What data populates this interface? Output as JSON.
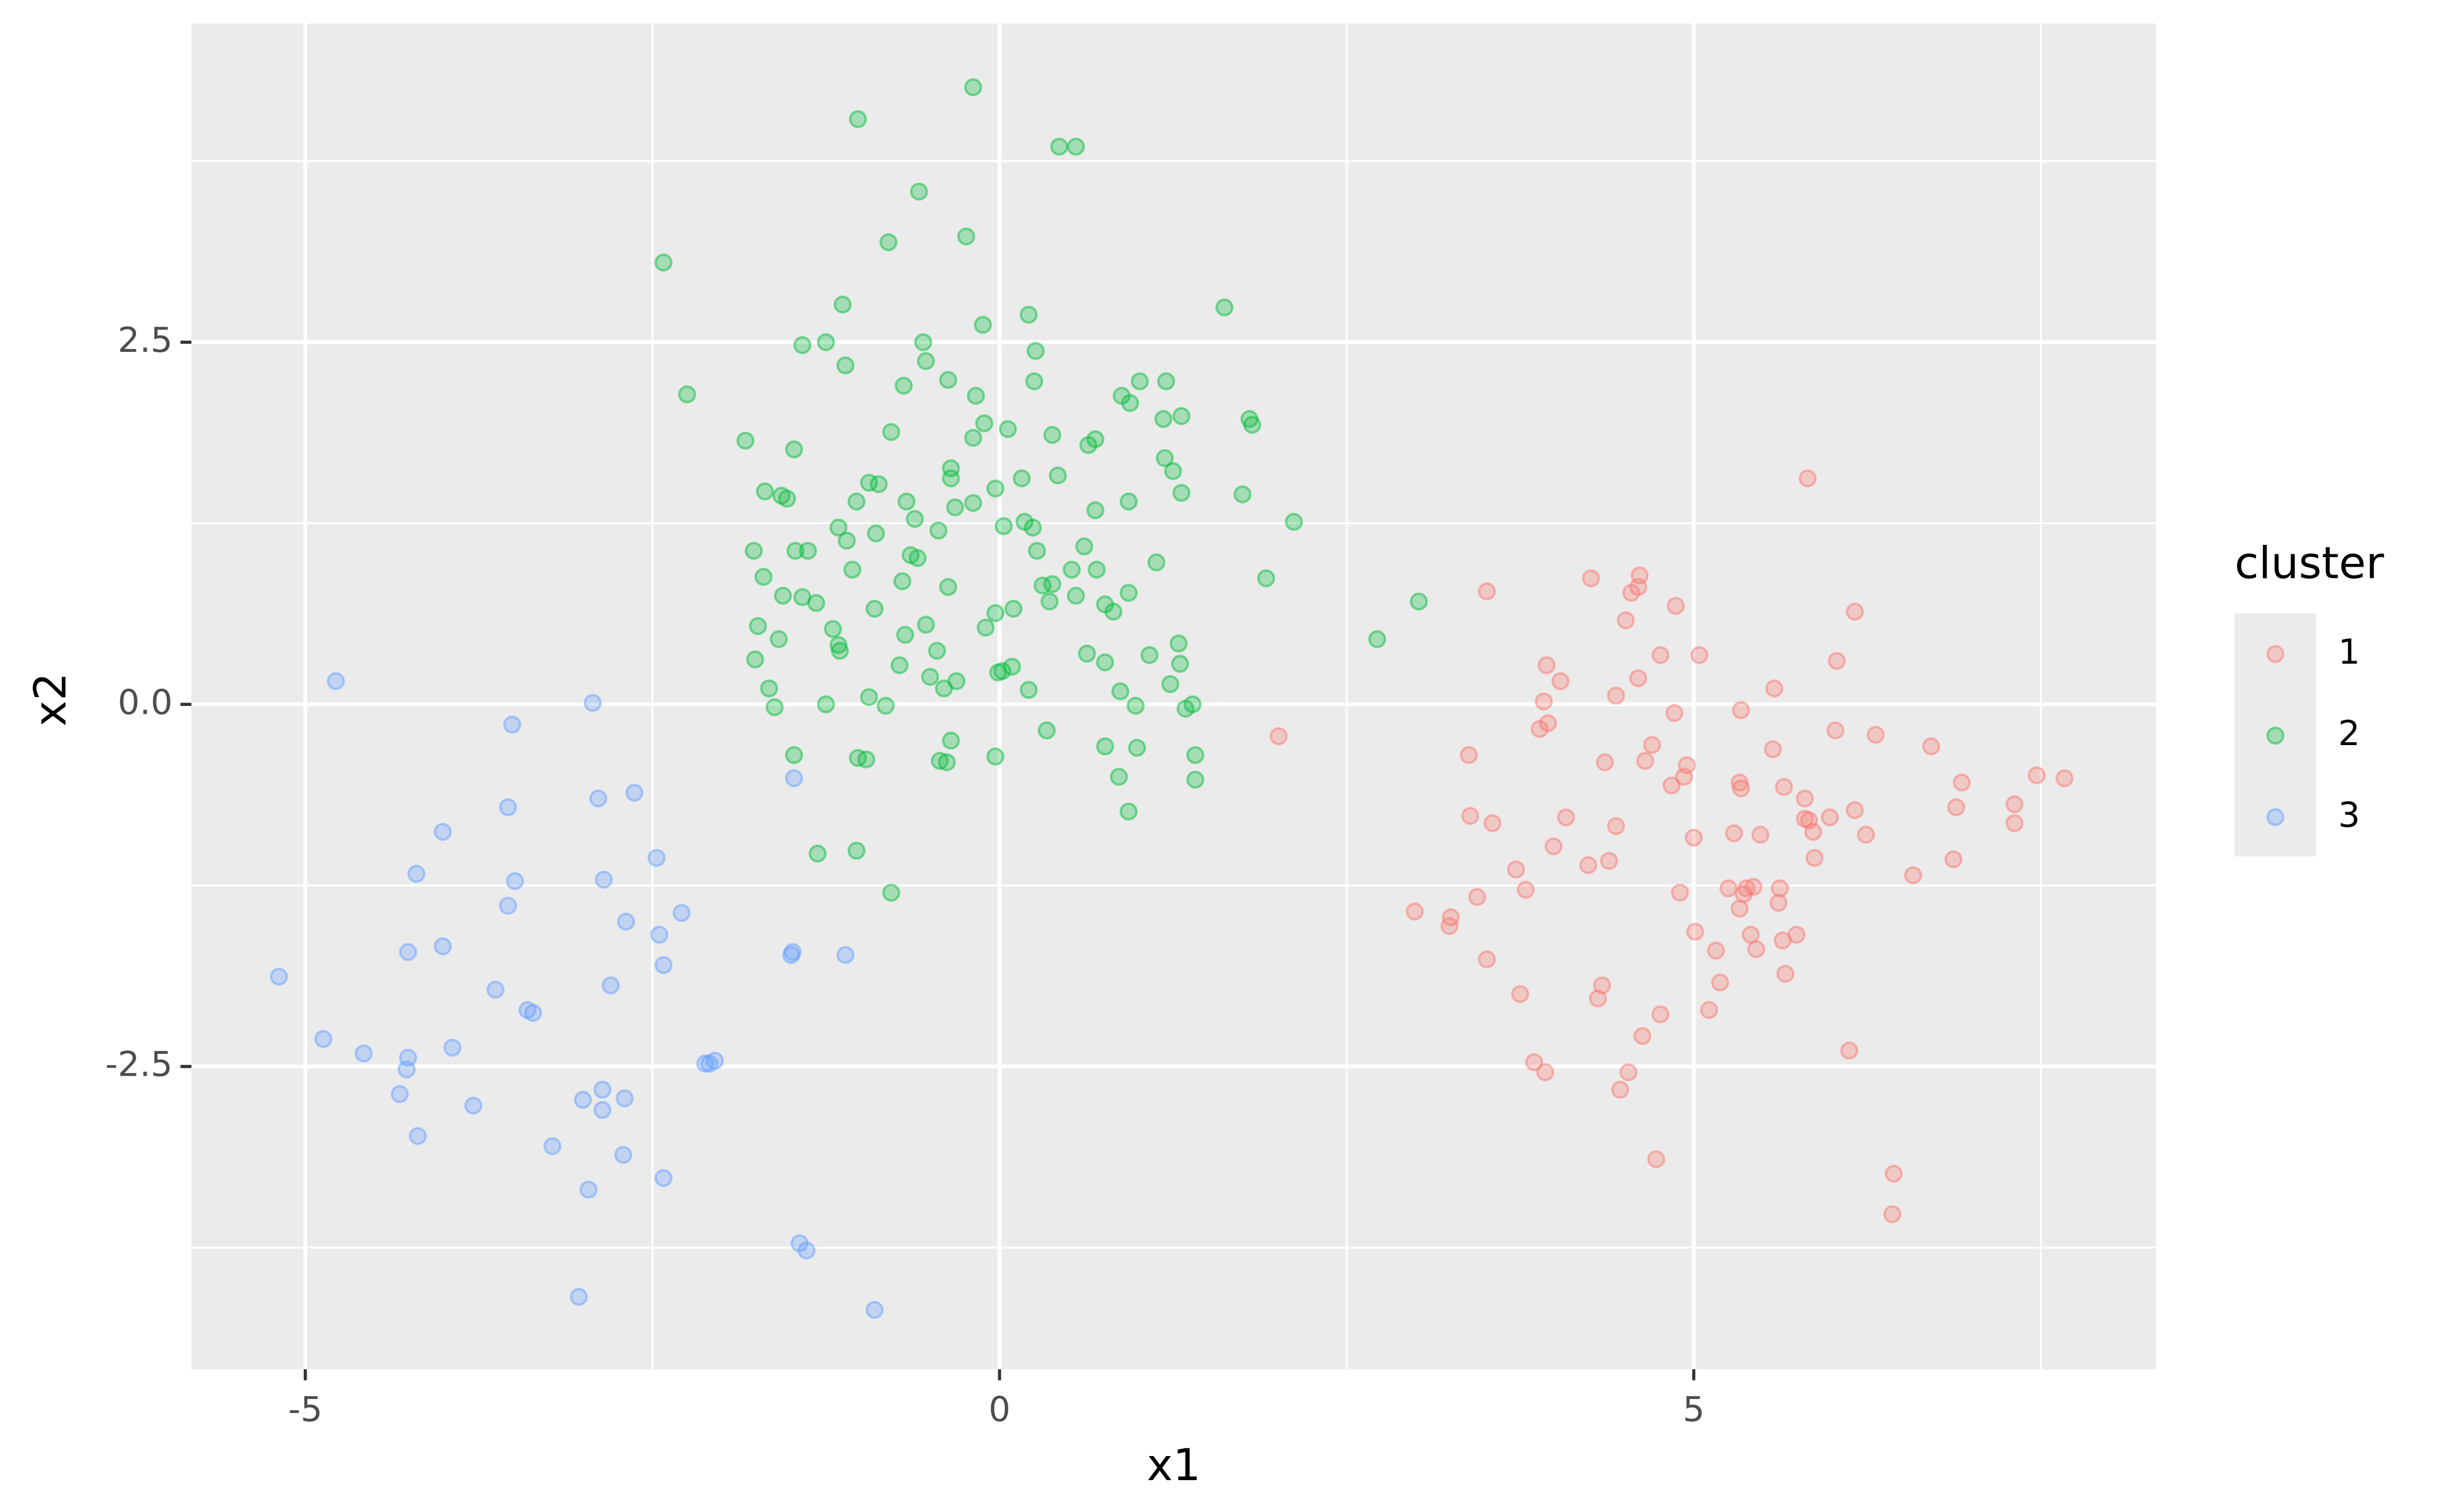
{
  "chart_data": {
    "type": "scatter",
    "x_label": "x1",
    "y_label": "x2",
    "legend_title": "cluster",
    "legend_position": "right",
    "grid": true,
    "alpha": 0.3,
    "xlim": [
      -5.82,
      8.33
    ],
    "ylim": [
      -4.59,
      4.7
    ],
    "xticks": [
      -5,
      0,
      5
    ],
    "yticks": [
      -2.5,
      {
        "value": 0,
        "label": "0.0"
      },
      2.5
    ],
    "series": [
      {
        "name": "1",
        "color": "#F8766D",
        "x": [
          5.82,
          4.61,
          4.26,
          4.6,
          3.51,
          4.55,
          4.87,
          6.16,
          4.51,
          5.04,
          4.76,
          3.94,
          6.03,
          4.04,
          4.6,
          5.58,
          4.44,
          3.92,
          5.34,
          4.86,
          3.95,
          3.89,
          6.02,
          6.31,
          4.7,
          6.71,
          5.57,
          3.38,
          4.36,
          4.65,
          4.95,
          7.47,
          7.67,
          4.93,
          6.93,
          4.84,
          5.33,
          5.34,
          5.65,
          5.8,
          6.16,
          6.89,
          7.31,
          4.08,
          3.39,
          3.55,
          5.8,
          5.83,
          5.98,
          7.31,
          4.44,
          5.86,
          5.29,
          5.48,
          6.24,
          5.0,
          3.99,
          5.87,
          6.87,
          4.39,
          4.24,
          3.72,
          6.58,
          5.25,
          5.38,
          5.43,
          4.9,
          5.36,
          3.79,
          5.62,
          3.44,
          5.61,
          5.33,
          2.99,
          3.25,
          3.24,
          5.01,
          5.41,
          5.74,
          5.64,
          5.16,
          5.45,
          3.51,
          5.66,
          5.19,
          4.34,
          3.75,
          4.31,
          5.11,
          4.76,
          4.63,
          6.12,
          3.85,
          3.93,
          4.53,
          4.47,
          4.73,
          6.44,
          6.43,
          2.01
        ],
        "values": [
          1.56,
          0.89,
          0.87,
          0.81,
          0.78,
          0.77,
          0.68,
          0.64,
          0.58,
          0.34,
          0.34,
          0.27,
          0.3,
          0.16,
          0.18,
          0.11,
          0.06,
          0.02,
          -0.04,
          -0.06,
          -0.13,
          -0.17,
          -0.18,
          -0.21,
          -0.28,
          -0.29,
          -0.31,
          -0.35,
          -0.4,
          -0.39,
          -0.42,
          -0.49,
          -0.51,
          -0.5,
          -0.54,
          -0.56,
          -0.54,
          -0.58,
          -0.57,
          -0.65,
          -0.73,
          -0.71,
          -0.69,
          -0.78,
          -0.77,
          -0.82,
          -0.79,
          -0.8,
          -0.78,
          -0.82,
          -0.84,
          -0.88,
          -0.89,
          -0.9,
          -0.9,
          -0.92,
          -0.98,
          -1.06,
          -1.07,
          -1.08,
          -1.11,
          -1.14,
          -1.18,
          -1.27,
          -1.27,
          -1.26,
          -1.3,
          -1.31,
          -1.28,
          -1.27,
          -1.33,
          -1.37,
          -1.41,
          -1.43,
          -1.47,
          -1.53,
          -1.57,
          -1.59,
          -1.59,
          -1.63,
          -1.7,
          -1.69,
          -1.76,
          -1.86,
          -1.92,
          -1.94,
          -2.0,
          -2.03,
          -2.11,
          -2.14,
          -2.29,
          -2.39,
          -2.47,
          -2.54,
          -2.54,
          -2.66,
          -3.14,
          -3.24,
          -3.52,
          -0.22
        ]
      },
      {
        "name": "2",
        "color": "#00BA38",
        "x": [
          -0.19,
          -1.02,
          0.43,
          0.55,
          -0.58,
          -0.24,
          -0.8,
          -2.42,
          1.62,
          -1.13,
          0.21,
          -0.12,
          -1.25,
          -1.42,
          -0.55,
          0.26,
          -1.11,
          -0.53,
          -0.37,
          -0.69,
          0.25,
          1.01,
          1.2,
          -2.25,
          -0.17,
          0.88,
          0.94,
          1.18,
          1.31,
          1.8,
          1.82,
          -0.11,
          0.06,
          -0.78,
          0.38,
          0.69,
          -1.83,
          0.64,
          -0.19,
          -1.48,
          1.19,
          -0.35,
          0.42,
          -0.35,
          1.25,
          0.16,
          -0.94,
          -0.87,
          -0.03,
          -1.69,
          -1.57,
          -1.53,
          1.31,
          1.75,
          -1.03,
          -0.67,
          -0.19,
          -0.32,
          0.93,
          0.69,
          -0.61,
          2.12,
          0.18,
          0.24,
          0.03,
          -1.16,
          -0.44,
          -0.89,
          -1.1,
          0.61,
          -1.77,
          -1.47,
          -1.38,
          0.27,
          -0.64,
          -0.59,
          1.13,
          -1.06,
          0.52,
          0.7,
          -1.7,
          -0.7,
          1.92,
          0.31,
          0.38,
          -0.37,
          3.02,
          2.72,
          0.55,
          -1.56,
          -1.42,
          -1.32,
          0.36,
          0.76,
          0.93,
          0.82,
          -0.9,
          0.1,
          -0.03,
          -1.74,
          -1.2,
          -0.53,
          -0.1,
          -0.68,
          -1.16,
          -1.15,
          -0.45,
          -1.59,
          1.29,
          0.63,
          1.08,
          -1.76,
          0.76,
          1.3,
          -0.72,
          0.09,
          0.02,
          -0.01,
          -0.5,
          -0.31,
          1.23,
          -0.4,
          0.21,
          -1.66,
          0.87,
          -0.94,
          1.39,
          1.34,
          -0.82,
          -1.25,
          -1.62,
          0.98,
          0.34,
          -0.35,
          0.76,
          0.99,
          -1.48,
          1.41,
          -0.03,
          -1.02,
          -0.96,
          -0.43,
          -0.38,
          1.41,
          0.86,
          0.93,
          -1.31,
          -1.03,
          -0.78
        ],
        "values": [
          4.26,
          4.04,
          3.85,
          3.85,
          3.54,
          3.23,
          3.19,
          3.05,
          2.74,
          2.76,
          2.69,
          2.62,
          2.5,
          2.48,
          2.5,
          2.44,
          2.34,
          2.37,
          2.24,
          2.2,
          2.23,
          2.23,
          2.23,
          2.14,
          2.13,
          2.13,
          2.08,
          1.97,
          1.99,
          1.97,
          1.93,
          1.94,
          1.9,
          1.88,
          1.86,
          1.83,
          1.82,
          1.79,
          1.84,
          1.76,
          1.7,
          1.63,
          1.58,
          1.56,
          1.61,
          1.56,
          1.53,
          1.52,
          1.49,
          1.47,
          1.44,
          1.42,
          1.46,
          1.45,
          1.4,
          1.4,
          1.39,
          1.36,
          1.4,
          1.34,
          1.28,
          1.26,
          1.26,
          1.22,
          1.23,
          1.22,
          1.2,
          1.18,
          1.13,
          1.09,
          1.06,
          1.06,
          1.06,
          1.06,
          1.03,
          1.01,
          0.98,
          0.93,
          0.93,
          0.93,
          0.88,
          0.85,
          0.87,
          0.82,
          0.83,
          0.81,
          0.71,
          0.45,
          0.75,
          0.75,
          0.74,
          0.7,
          0.71,
          0.69,
          0.77,
          0.64,
          0.66,
          0.66,
          0.63,
          0.54,
          0.52,
          0.55,
          0.53,
          0.48,
          0.41,
          0.37,
          0.37,
          0.45,
          0.42,
          0.35,
          0.34,
          0.31,
          0.29,
          0.28,
          0.27,
          0.26,
          0.23,
          0.22,
          0.19,
          0.16,
          0.14,
          0.11,
          0.1,
          0.11,
          0.09,
          0.05,
          0.0,
          -0.03,
          -0.01,
          0.0,
          -0.02,
          -0.01,
          -0.18,
          -0.25,
          -0.29,
          -0.3,
          -0.35,
          -0.35,
          -0.36,
          -0.37,
          -0.38,
          -0.39,
          -0.4,
          -0.52,
          -0.5,
          -0.74,
          -1.03,
          -1.01,
          -1.3
        ]
      },
      {
        "name": "3",
        "color": "#619CFF",
        "x": [
          -4.78,
          -2.93,
          -3.51,
          -4.01,
          -3.54,
          -2.89,
          -2.63,
          -4.2,
          -3.49,
          -2.85,
          -2.47,
          -3.54,
          -2.29,
          -2.69,
          -2.45,
          -4.26,
          -4.01,
          -2.42,
          -2.8,
          -3.63,
          -5.19,
          -3.4,
          -3.36,
          -4.87,
          -4.58,
          -3.94,
          -4.26,
          -4.27,
          -4.32,
          -2.86,
          -3.0,
          -2.7,
          -2.86,
          -3.79,
          -4.19,
          -3.22,
          -2.71,
          -2.42,
          -2.96,
          -3.03,
          -2.12,
          -2.09,
          -2.05,
          -1.48,
          -1.49,
          -1.5,
          -1.11,
          -1.44,
          -1.39,
          -0.9
        ],
        "values": [
          0.16,
          0.01,
          -0.14,
          -0.88,
          -0.71,
          -0.65,
          -0.61,
          -1.17,
          -1.22,
          -1.21,
          -1.06,
          -1.39,
          -1.44,
          -1.5,
          -1.59,
          -1.71,
          -1.67,
          -1.8,
          -1.94,
          -1.97,
          -1.88,
          -2.11,
          -2.13,
          -2.31,
          -2.41,
          -2.37,
          -2.44,
          -2.52,
          -2.69,
          -2.66,
          -2.73,
          -2.72,
          -2.8,
          -2.77,
          -2.98,
          -3.05,
          -3.11,
          -3.27,
          -3.35,
          -4.09,
          -2.48,
          -2.48,
          -2.46,
          -0.51,
          -1.71,
          -1.73,
          -1.73,
          -3.72,
          -3.77,
          -4.18
        ]
      }
    ]
  }
}
